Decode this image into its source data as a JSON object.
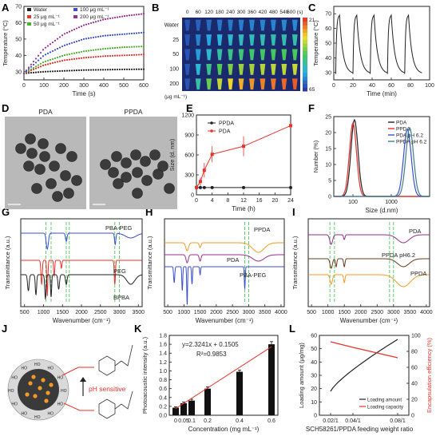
{
  "panels": {
    "A": "A",
    "B": "B",
    "C": "C",
    "D": "D",
    "E": "E",
    "F": "F",
    "G": "G",
    "H": "H",
    "I": "I",
    "J": "J",
    "K": "K",
    "L": "L"
  },
  "colors": {
    "black": "#222222",
    "red": "#e8322a",
    "green": "#4caf2f",
    "blue": "#3a4ed1",
    "purple": "#9a2f8f",
    "orange": "#f39a24",
    "brown": "#6b3b1f",
    "teal": "#3d7f86",
    "gridgreen": "#3dbb4a"
  },
  "chart_data": [
    {
      "panel": "A",
      "type": "line",
      "xlabel": "Time (s)",
      "ylabel": "Temperature (°C)",
      "xlim": [
        0,
        600
      ],
      "ylim": [
        25,
        70
      ],
      "xticks": [
        "0",
        "100",
        "200",
        "300",
        "400",
        "500",
        "600"
      ],
      "yticks": [
        "30",
        "40",
        "50",
        "60",
        "70"
      ],
      "legend": [
        "Water",
        "25 μg mL⁻¹",
        "50 μg mL⁻¹",
        "100 μg mL⁻¹",
        "200 μg mL⁻¹"
      ],
      "series": [
        {
          "name": "Water",
          "color": "#222222",
          "values_x": [
            0,
            100,
            200,
            300,
            400,
            500,
            600
          ],
          "values_y": [
            29,
            30,
            30.5,
            31,
            31.2,
            31.4,
            31.5
          ]
        },
        {
          "name": "25 μg mL⁻¹",
          "color": "#e8322a",
          "values_x": [
            0,
            100,
            200,
            300,
            400,
            500,
            600
          ],
          "values_y": [
            29,
            34,
            37,
            38.5,
            39.5,
            40,
            40.5
          ]
        },
        {
          "name": "50 μg mL⁻¹",
          "color": "#4caf2f",
          "values_x": [
            0,
            100,
            200,
            300,
            400,
            500,
            600
          ],
          "values_y": [
            29,
            36,
            40,
            42.5,
            44,
            45,
            45.5
          ]
        },
        {
          "name": "100 μg mL⁻¹",
          "color": "#3a4ed1",
          "values_x": [
            0,
            100,
            200,
            300,
            400,
            500,
            600
          ],
          "values_y": [
            29,
            40,
            46,
            50,
            52,
            53,
            54
          ]
        },
        {
          "name": "200 μg mL⁻¹",
          "color": "#9a2f8f",
          "values_x": [
            0,
            100,
            200,
            300,
            400,
            500,
            600
          ],
          "values_y": [
            29,
            44,
            53,
            58.5,
            62,
            64,
            65.5
          ]
        }
      ]
    },
    {
      "panel": "B",
      "type": "heatmap",
      "xticks": [
        "0",
        "60",
        "120",
        "180",
        "240",
        "300",
        "360",
        "420",
        "480",
        "540",
        "600 (s)"
      ],
      "rows": [
        "Water",
        "25",
        "50",
        "100",
        "200"
      ],
      "row_unit": "(μg mL⁻¹)",
      "colorbar": [
        "21",
        "65"
      ],
      "intensity": [
        [
          0.05,
          0.08,
          0.1,
          0.12,
          0.13,
          0.14,
          0.15,
          0.15,
          0.15,
          0.16,
          0.16
        ],
        [
          0.05,
          0.15,
          0.22,
          0.27,
          0.3,
          0.32,
          0.33,
          0.34,
          0.35,
          0.35,
          0.36
        ],
        [
          0.05,
          0.2,
          0.3,
          0.37,
          0.42,
          0.45,
          0.47,
          0.48,
          0.49,
          0.5,
          0.5
        ],
        [
          0.05,
          0.28,
          0.42,
          0.52,
          0.58,
          0.62,
          0.64,
          0.66,
          0.67,
          0.68,
          0.69
        ],
        [
          0.05,
          0.36,
          0.55,
          0.68,
          0.76,
          0.82,
          0.86,
          0.89,
          0.91,
          0.93,
          0.95
        ]
      ]
    },
    {
      "panel": "C",
      "type": "line",
      "xlabel": "Time (min)",
      "ylabel": "Temperature (°C)",
      "xlim": [
        0,
        100
      ],
      "ylim": [
        25,
        75
      ],
      "xticks": [
        "0",
        "20",
        "40",
        "60",
        "80",
        "100"
      ],
      "yticks": [
        "30",
        "40",
        "50",
        "60",
        "70"
      ],
      "cycles": 5,
      "peak": 69,
      "base": 29
    },
    {
      "panel": "D",
      "type": "image",
      "labels": [
        "PDA",
        "PPDA"
      ]
    },
    {
      "panel": "E",
      "type": "line",
      "xlabel": "Time (h)",
      "ylabel": "Size (d. nm)",
      "xlim": [
        0,
        24
      ],
      "ylim": [
        0,
        1200
      ],
      "xticks": [
        "0",
        "4",
        "8",
        "12",
        "16",
        "20",
        "24"
      ],
      "yticks": [
        "0",
        "300",
        "600",
        "900",
        "1200"
      ],
      "legend": [
        "PPDA",
        "PDA"
      ],
      "series": [
        {
          "name": "PPDA",
          "color": "#222222",
          "x": [
            0,
            1,
            2,
            4,
            12,
            24
          ],
          "y": [
            110,
            110,
            110,
            110,
            110,
            110
          ]
        },
        {
          "name": "PDA",
          "color": "#e8322a",
          "x": [
            0,
            1,
            2,
            4,
            12,
            24
          ],
          "y": [
            110,
            200,
            370,
            610,
            730,
            1040
          ]
        }
      ]
    },
    {
      "panel": "F",
      "type": "line",
      "xlabel": "Size (d.nm)",
      "ylabel": "Number (%)",
      "ylim": [
        0,
        25
      ],
      "xticks": [
        "100",
        "1000"
      ],
      "yticks": [
        "0",
        "5",
        "10",
        "15",
        "20",
        "25"
      ],
      "legend": [
        "PDA",
        "PPDA",
        "PDA pH 6.2",
        "PPDA pH 6.2"
      ],
      "series": [
        {
          "name": "PDA",
          "color": "#222222",
          "peak_log10": 2.04,
          "height": 24,
          "width": 0.13
        },
        {
          "name": "PPDA",
          "color": "#e8322a",
          "peak_log10": 2.0,
          "height": 23,
          "width": 0.13
        },
        {
          "name": "PDA pH 6.2",
          "color": "#3a4ed1",
          "peak_log10": 3.42,
          "height": 21,
          "width": 0.14
        },
        {
          "name": "PPDA pH 6.2",
          "color": "#3d7f86",
          "peak_log10": 3.48,
          "height": 21.5,
          "width": 0.14
        }
      ]
    },
    {
      "panel": "G",
      "type": "line",
      "xlabel": "Wavenumber (cm⁻¹)",
      "ylabel": "Transmittance (a.u.)",
      "xticks": [
        "500",
        "1000",
        "1500",
        "2000",
        "2500",
        "3000",
        "3500"
      ],
      "labels": [
        "PBA-PEG",
        "PEG",
        "BPBA"
      ]
    },
    {
      "panel": "H",
      "type": "line",
      "xlabel": "Wavenumber (cm⁻¹)",
      "ylabel": "Transmittance (a.u.)",
      "xticks": [
        "500",
        "1000",
        "1500",
        "2000",
        "2500",
        "3000",
        "3500",
        "4000"
      ],
      "labels": [
        "PPDA",
        "PDA",
        "PBA-PEG"
      ]
    },
    {
      "panel": "I",
      "type": "line",
      "xlabel": "Wavenumber (cm⁻¹)",
      "ylabel": "Transmittance (a.u.)",
      "xticks": [
        "500",
        "1000",
        "1500",
        "2000",
        "2500",
        "3000",
        "3500",
        "4000"
      ],
      "labels": [
        "PDA",
        "PPDA pH6.2",
        "PPDA"
      ]
    },
    {
      "panel": "J",
      "type": "diagram",
      "label": "pH sensitive"
    },
    {
      "panel": "K",
      "type": "bar",
      "xlabel": "Concentration (mg mL⁻¹)",
      "ylabel": "Photoacoustic intensity (a.u.)",
      "categories": [
        "0",
        "0.05",
        "0.1",
        "0.2",
        "0.4",
        "0.6"
      ],
      "x": [
        0,
        0.05,
        0.1,
        0.2,
        0.4,
        0.6
      ],
      "values": [
        0.17,
        0.27,
        0.33,
        0.6,
        0.98,
        1.6
      ],
      "errors": [
        0.02,
        0.03,
        0.03,
        0.04,
        0.04,
        0.06
      ],
      "ylim": [
        0,
        1.8
      ],
      "yticks": [
        "0.0",
        "0.2",
        "0.4",
        "0.6",
        "0.8",
        "1.0",
        "1.2",
        "1.4",
        "1.6",
        "1.8"
      ],
      "equation": "y=2.3241x + 0.1505",
      "r2": "R²=0.9853"
    },
    {
      "panel": "L",
      "type": "line",
      "xlabel": "SCH58261/PPDA feeding weight ratio",
      "ylabel": "Loading amount (μg/mg)",
      "y2label": "Encapsulation efficiency (%)",
      "categories": [
        "0.02/1",
        "0.04/1",
        "0.08/1"
      ],
      "ylim": [
        0,
        60
      ],
      "y2lim": [
        0,
        100
      ],
      "yticks": [
        "0",
        "10",
        "20",
        "30",
        "40",
        "50",
        "60"
      ],
      "y2ticks": [
        "0",
        "20",
        "40",
        "60",
        "80",
        "100"
      ],
      "legend": [
        "Loading amount",
        "Loading capacity"
      ],
      "series": [
        {
          "name": "Loading amount",
          "color": "#222222",
          "x": [
            0.02,
            0.04,
            0.08
          ],
          "y": [
            18,
            33,
            57
          ]
        },
        {
          "name": "Loading capacity",
          "color": "#e8322a",
          "x": [
            0.02,
            0.04,
            0.08
          ],
          "y": [
            92,
            85,
            72
          ]
        }
      ]
    }
  ]
}
